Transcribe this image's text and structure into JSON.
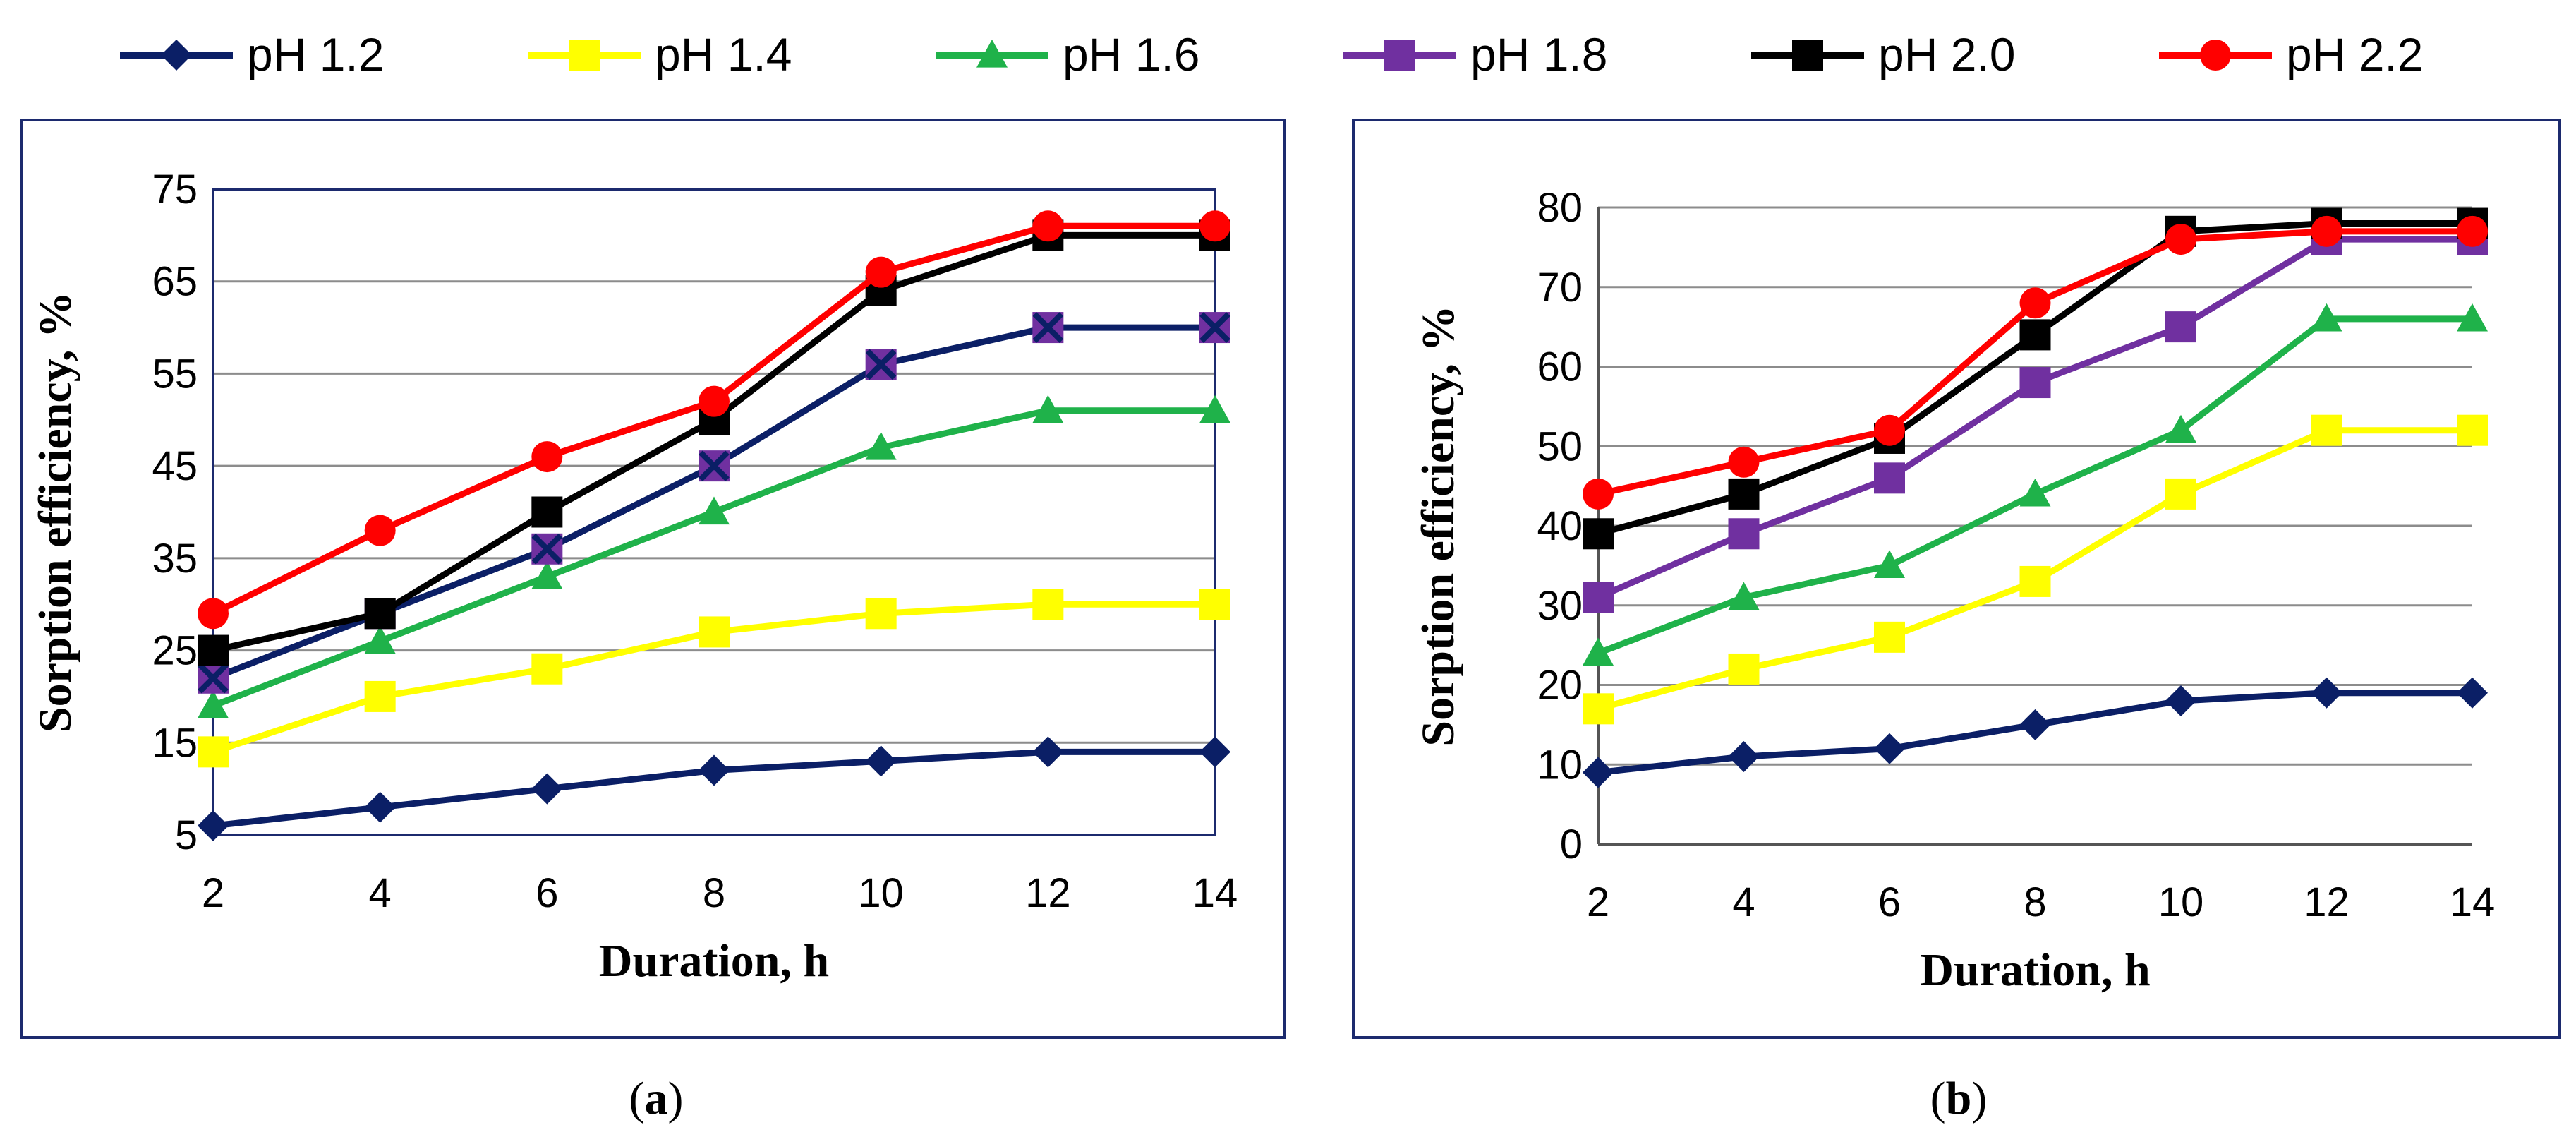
{
  "legend": [
    {
      "label": "pH 1.2",
      "color": "#0b1f66",
      "marker": "diamond"
    },
    {
      "label": "pH 1.4",
      "color": "#ffff00",
      "marker": "square"
    },
    {
      "label": "pH 1.6",
      "color": "#1fb24a",
      "marker": "triangle"
    },
    {
      "label": "pH 1.8",
      "color": "#7030a0",
      "marker": "square"
    },
    {
      "label": "pH 2.0",
      "color": "#000000",
      "marker": "square"
    },
    {
      "label": "pH 2.2",
      "color": "#ff0000",
      "marker": "circle"
    }
  ],
  "chart_data": [
    {
      "type": "line",
      "caption": {
        "open": "(",
        "letter": "a",
        "close": ")"
      },
      "xlabel": "Duration, h",
      "ylabel": "Sorption efficiency, %",
      "x": [
        2,
        4,
        6,
        8,
        10,
        12,
        14
      ],
      "xlim": [
        2,
        14
      ],
      "ylim": [
        5,
        75
      ],
      "yticks": [
        5,
        15,
        25,
        35,
        45,
        55,
        65,
        75
      ],
      "grid": true,
      "series": [
        {
          "name": "pH 1.2",
          "values": [
            6,
            8,
            10,
            12,
            13,
            14,
            14
          ]
        },
        {
          "name": "pH 1.4",
          "values": [
            14,
            20,
            23,
            27,
            29,
            30,
            30
          ]
        },
        {
          "name": "pH 1.6",
          "values": [
            19,
            26,
            33,
            40,
            47,
            51,
            51
          ]
        },
        {
          "name": "pH 1.8",
          "values": [
            22,
            29,
            36,
            45,
            56,
            60,
            60
          ],
          "line_color": "#0b1f66",
          "marker": "xsquare"
        },
        {
          "name": "pH 2.0",
          "values": [
            25,
            29,
            40,
            50,
            64,
            70,
            70
          ]
        },
        {
          "name": "pH 2.2",
          "values": [
            29,
            38,
            46,
            52,
            66,
            71,
            71
          ]
        }
      ]
    },
    {
      "type": "line",
      "caption": {
        "open": "(",
        "letter": "b",
        "close": ")"
      },
      "xlabel": "Duration, h",
      "ylabel": "Sorption efficiency, %",
      "x": [
        2,
        4,
        6,
        8,
        10,
        12,
        14
      ],
      "xlim": [
        2,
        14
      ],
      "ylim": [
        0,
        80
      ],
      "yticks": [
        0,
        10,
        20,
        30,
        40,
        50,
        60,
        70,
        80
      ],
      "grid": true,
      "series": [
        {
          "name": "pH 1.2",
          "values": [
            9,
            11,
            12,
            15,
            18,
            19,
            19
          ]
        },
        {
          "name": "pH 1.4",
          "values": [
            17,
            22,
            26,
            33,
            44,
            52,
            52
          ]
        },
        {
          "name": "pH 1.6",
          "values": [
            24,
            31,
            35,
            44,
            52,
            66,
            66
          ]
        },
        {
          "name": "pH 1.8",
          "values": [
            31,
            39,
            46,
            58,
            65,
            76,
            76
          ]
        },
        {
          "name": "pH 2.0",
          "values": [
            39,
            44,
            51,
            64,
            77,
            78,
            78
          ]
        },
        {
          "name": "pH 2.2",
          "values": [
            44,
            48,
            52,
            68,
            76,
            77,
            77
          ]
        }
      ]
    }
  ]
}
